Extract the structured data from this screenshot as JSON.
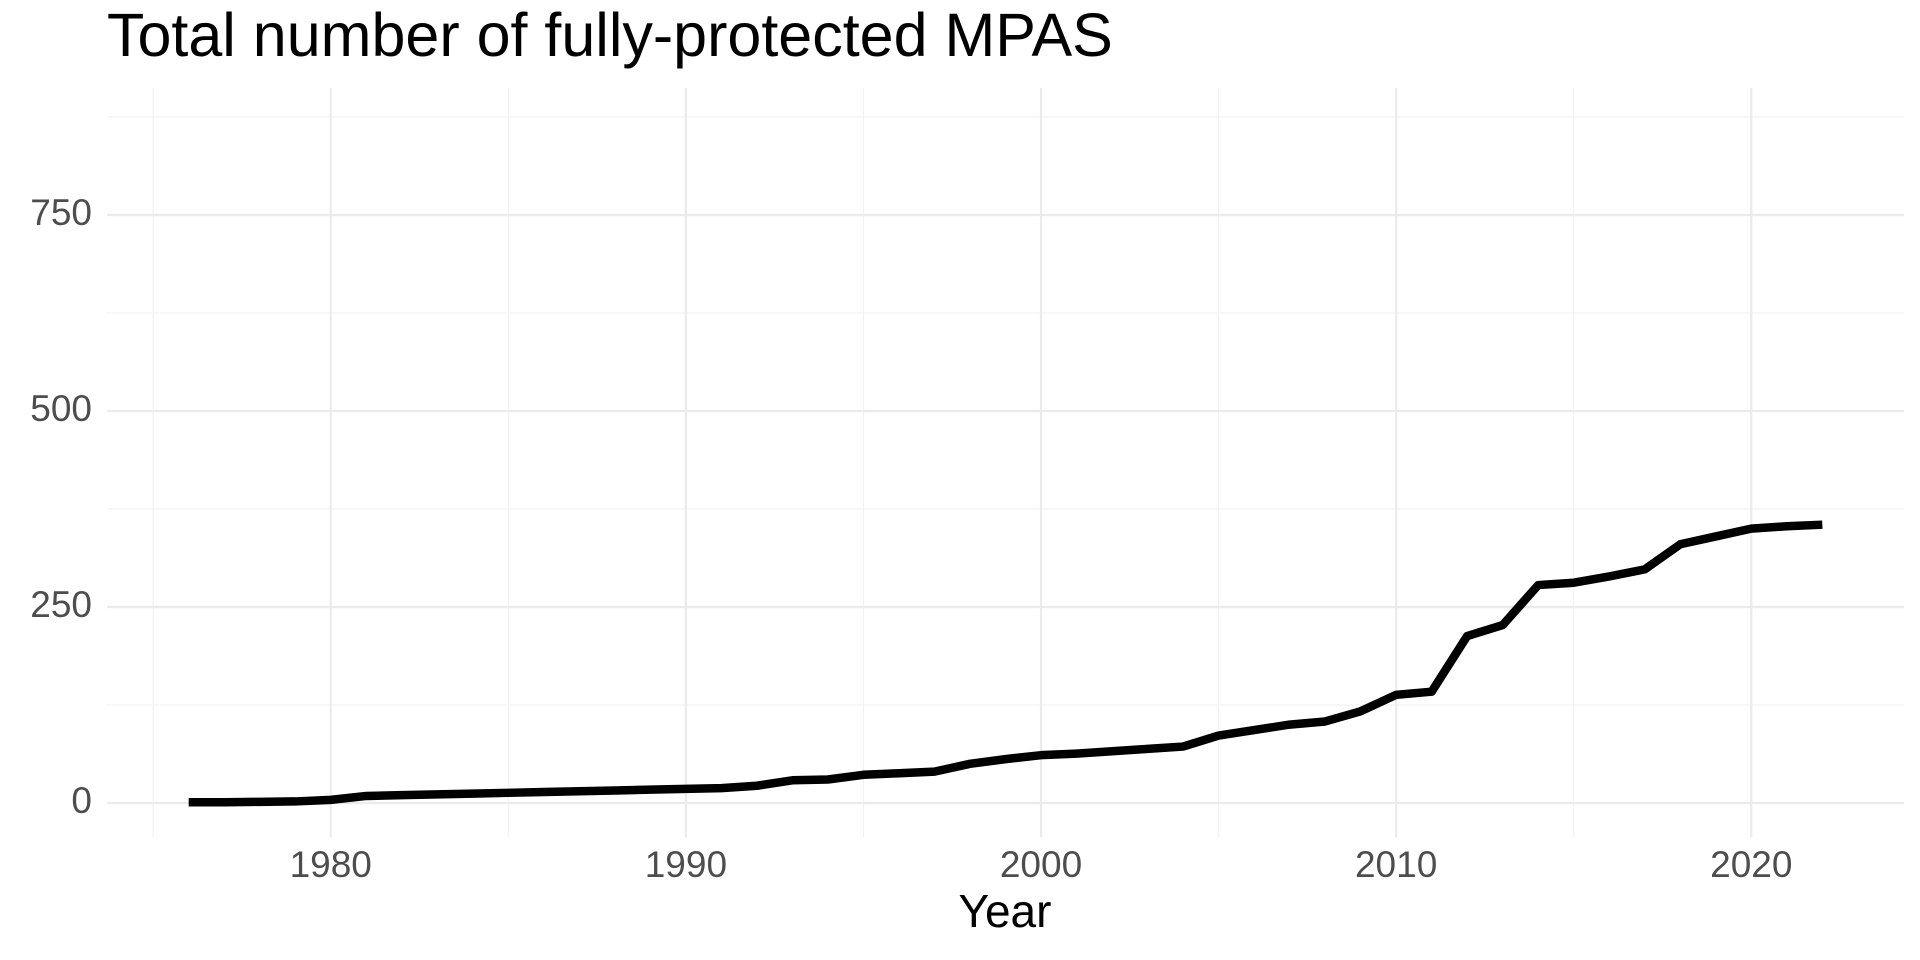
{
  "chart_data": {
    "type": "line",
    "title": "Total number of fully-protected MPAS",
    "x_label": "Year",
    "x": [
      1976,
      1977,
      1978,
      1979,
      1980,
      1981,
      1982,
      1983,
      1984,
      1985,
      1986,
      1987,
      1988,
      1989,
      1990,
      1991,
      1992,
      1993,
      1994,
      1995,
      1996,
      1997,
      1998,
      1999,
      2000,
      2001,
      2002,
      2003,
      2004,
      2005,
      2006,
      2007,
      2008,
      2009,
      2010,
      2011,
      2012,
      2013,
      2014,
      2015,
      2016,
      2017,
      2018,
      2019,
      2020,
      2021,
      2022
    ],
    "values": [
      1,
      1,
      1.5,
      2,
      4,
      9,
      10,
      11,
      12,
      13,
      14,
      15,
      16,
      17,
      18,
      19,
      22,
      29,
      30,
      36,
      38,
      40,
      50,
      56,
      61,
      63,
      66,
      69,
      72,
      86,
      93,
      100,
      104,
      117,
      138,
      142,
      213,
      227,
      278,
      281,
      289,
      298,
      330,
      340,
      350,
      353,
      355
    ],
    "color": "#000000",
    "xlim": [
      1973.7,
      2024.3
    ],
    "xticks": [
      1980,
      1990,
      2000,
      2010,
      2020
    ],
    "ylim": [
      -44,
      912
    ],
    "yticks": [
      0,
      250,
      500,
      750
    ],
    "grid": true
  }
}
